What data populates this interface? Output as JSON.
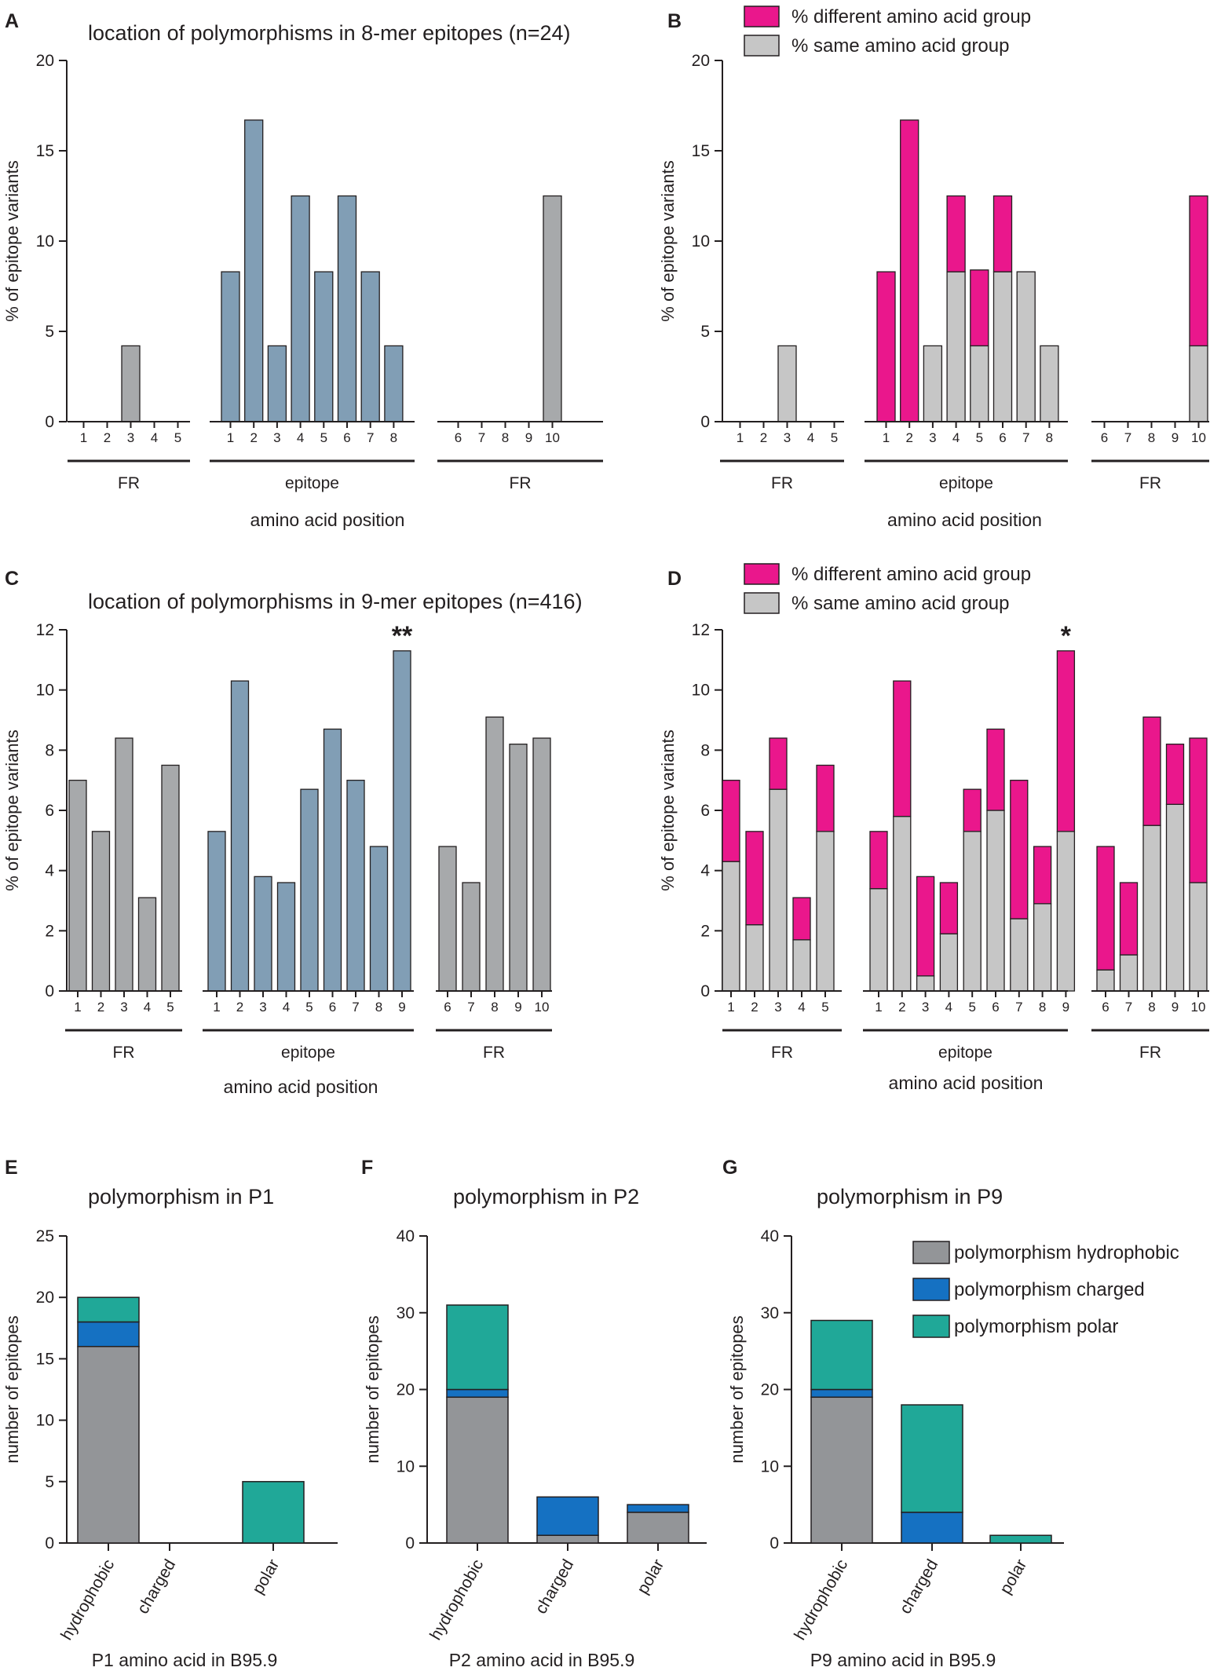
{
  "colors": {
    "fr": "#a7a9ab",
    "epitope": "#819eb5",
    "different": "#ea178c",
    "same": "#c6c6c6",
    "hydrophobic": "#939598",
    "charged": "#1571c2",
    "polar": "#20a898",
    "axis": "#231f20"
  },
  "chart_data": [
    {
      "panel": "A",
      "type": "bar",
      "title": "location of polymorphisms in 8-mer epitopes (n=24)",
      "ylabel": "% of epitope variants",
      "xlabel": "amino acid position",
      "ylim": [
        0,
        20
      ],
      "yticks": [
        0,
        5,
        10,
        15,
        20
      ],
      "groups": [
        {
          "label": "FR",
          "positions": [
            "1",
            "2",
            "3",
            "4",
            "5"
          ],
          "values": [
            0,
            0,
            4.2,
            0,
            0
          ],
          "color": "fr"
        },
        {
          "label": "epitope",
          "positions": [
            "1",
            "2",
            "3",
            "4",
            "5",
            "6",
            "7",
            "8"
          ],
          "values": [
            8.3,
            16.7,
            4.2,
            12.5,
            8.3,
            12.5,
            8.3,
            4.2
          ],
          "color": "epitope"
        },
        {
          "label": "FR",
          "positions": [
            "6",
            "7",
            "8",
            "9",
            "10"
          ],
          "values": [
            0,
            0,
            0,
            0,
            12.5
          ],
          "color": "fr"
        }
      ]
    },
    {
      "panel": "B",
      "type": "bar",
      "stacked": true,
      "title": "",
      "ylabel": "% of epitope variants",
      "xlabel": "amino acid position",
      "ylim": [
        0,
        20
      ],
      "yticks": [
        0,
        5,
        10,
        15,
        20
      ],
      "legend": [
        "% different amino acid group",
        "% same amino acid group"
      ],
      "groups": [
        {
          "label": "FR",
          "positions": [
            "1",
            "2",
            "3",
            "4",
            "5"
          ],
          "same": [
            0,
            0,
            4.2,
            0,
            0
          ],
          "different": [
            0,
            0,
            0,
            0,
            0
          ]
        },
        {
          "label": "epitope",
          "positions": [
            "1",
            "2",
            "3",
            "4",
            "5",
            "6",
            "7",
            "8"
          ],
          "same": [
            0,
            0,
            4.2,
            8.3,
            4.2,
            8.3,
            8.3,
            4.2
          ],
          "different": [
            8.3,
            16.7,
            0,
            4.2,
            4.2,
            4.2,
            0,
            0
          ]
        },
        {
          "label": "FR",
          "positions": [
            "6",
            "7",
            "8",
            "9",
            "10"
          ],
          "same": [
            0,
            0,
            0,
            0,
            4.2
          ],
          "different": [
            0,
            0,
            0,
            0,
            8.3
          ]
        }
      ]
    },
    {
      "panel": "C",
      "type": "bar",
      "title": "location of polymorphisms in 9-mer epitopes (n=416)",
      "ylabel": "% of epitope variants",
      "xlabel": "amino acid position",
      "ylim": [
        0,
        12
      ],
      "yticks": [
        0,
        2,
        4,
        6,
        8,
        10,
        12
      ],
      "annotation": {
        "group": 1,
        "index": 8,
        "text": "**"
      },
      "groups": [
        {
          "label": "FR",
          "positions": [
            "1",
            "2",
            "3",
            "4",
            "5"
          ],
          "values": [
            7.0,
            5.3,
            8.4,
            3.1,
            7.5
          ],
          "color": "fr"
        },
        {
          "label": "epitope",
          "positions": [
            "1",
            "2",
            "3",
            "4",
            "5",
            "6",
            "7",
            "8",
            "9"
          ],
          "values": [
            5.3,
            10.3,
            3.8,
            3.6,
            6.7,
            8.7,
            7.0,
            4.8,
            11.3
          ],
          "color": "epitope"
        },
        {
          "label": "FR",
          "positions": [
            "6",
            "7",
            "8",
            "9",
            "10"
          ],
          "values": [
            4.8,
            3.6,
            9.1,
            8.2,
            8.4
          ],
          "color": "fr"
        }
      ]
    },
    {
      "panel": "D",
      "type": "bar",
      "stacked": true,
      "title": "",
      "ylabel": "% of epitope variants",
      "xlabel": "amino acid position",
      "ylim": [
        0,
        12
      ],
      "yticks": [
        0,
        2,
        4,
        6,
        8,
        10,
        12
      ],
      "legend": [
        "% different amino acid group",
        "% same amino acid group"
      ],
      "annotation": {
        "group": 1,
        "index": 8,
        "text": "*"
      },
      "groups": [
        {
          "label": "FR",
          "positions": [
            "1",
            "2",
            "3",
            "4",
            "5"
          ],
          "same": [
            4.3,
            2.2,
            6.7,
            1.7,
            5.3
          ],
          "different": [
            2.7,
            3.1,
            1.7,
            1.4,
            2.2
          ]
        },
        {
          "label": "epitope",
          "positions": [
            "1",
            "2",
            "3",
            "4",
            "5",
            "6",
            "7",
            "8",
            "9"
          ],
          "same": [
            3.4,
            5.8,
            0.5,
            1.9,
            5.3,
            6.0,
            2.4,
            2.9,
            5.3
          ],
          "different": [
            1.9,
            4.5,
            3.3,
            1.7,
            1.4,
            2.7,
            4.6,
            1.9,
            6.0
          ]
        },
        {
          "label": "FR",
          "positions": [
            "6",
            "7",
            "8",
            "9",
            "10"
          ],
          "same": [
            0.7,
            1.2,
            5.5,
            6.2,
            3.6
          ],
          "different": [
            4.1,
            2.4,
            3.6,
            2.0,
            4.8
          ]
        }
      ]
    },
    {
      "panel": "E",
      "type": "bar",
      "stacked": true,
      "title": "polymorphism in P1",
      "ylabel": "number of epitopes",
      "xlabel": "P1 amino acid in B95.9",
      "ylim": [
        0,
        25
      ],
      "yticks": [
        0,
        5,
        10,
        15,
        20,
        25
      ],
      "categories": [
        "hydrophobic",
        "charged",
        "polar"
      ],
      "series": [
        {
          "name": "hydrophobic",
          "values": [
            16,
            0,
            0
          ]
        },
        {
          "name": "charged",
          "values": [
            2,
            0,
            0
          ]
        },
        {
          "name": "polar",
          "values": [
            2,
            0,
            5
          ]
        }
      ]
    },
    {
      "panel": "F",
      "type": "bar",
      "stacked": true,
      "title": "polymorphism in P2",
      "ylabel": "number of epitopes",
      "xlabel": "P2 amino acid in B95.9",
      "ylim": [
        0,
        40
      ],
      "yticks": [
        0,
        10,
        20,
        30,
        40
      ],
      "categories": [
        "hydrophobic",
        "charged",
        "polar"
      ],
      "series": [
        {
          "name": "hydrophobic",
          "values": [
            19,
            1,
            4
          ]
        },
        {
          "name": "charged",
          "values": [
            1,
            5,
            1
          ]
        },
        {
          "name": "polar",
          "values": [
            11,
            0,
            0
          ]
        }
      ]
    },
    {
      "panel": "G",
      "type": "bar",
      "stacked": true,
      "title": "polymorphism in P9",
      "ylabel": "number of epitopes",
      "xlabel": "P9 amino acid in B95.9",
      "ylim": [
        0,
        40
      ],
      "yticks": [
        0,
        10,
        20,
        30,
        40
      ],
      "categories": [
        "hydrophobic",
        "charged",
        "polar"
      ],
      "legend": [
        "polymorphism hydrophobic",
        "polymorphism charged",
        "polymorphism polar"
      ],
      "series": [
        {
          "name": "hydrophobic",
          "values": [
            19,
            0,
            0
          ]
        },
        {
          "name": "charged",
          "values": [
            1,
            4,
            0
          ]
        },
        {
          "name": "polar",
          "values": [
            9,
            14,
            1
          ]
        }
      ]
    }
  ]
}
